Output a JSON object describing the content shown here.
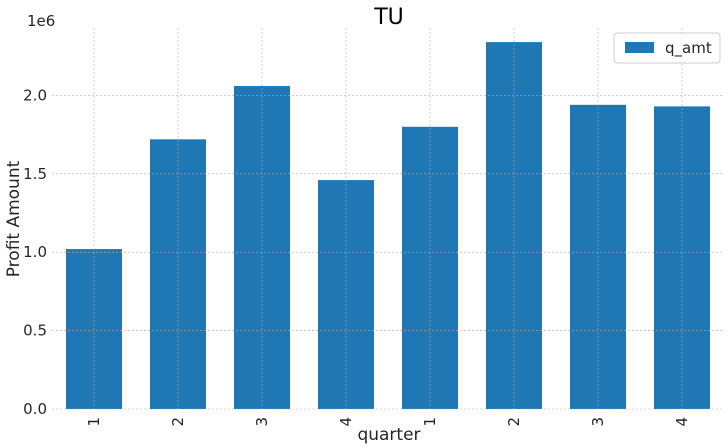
{
  "chart_data": {
    "type": "bar",
    "title": "TU",
    "xlabel": "quarter",
    "ylabel": "Profit Amount",
    "offset_label": "1e6",
    "categories": [
      "1",
      "2",
      "3",
      "4",
      "1",
      "2",
      "3",
      "4"
    ],
    "series": [
      {
        "name": "q_amt",
        "color": "#1f77b4",
        "values": [
          1020000,
          1720000,
          2060000,
          1460000,
          1800000,
          2340000,
          1940000,
          1930000
        ]
      }
    ],
    "ylim": [
      0,
      2430000
    ],
    "yticks": [
      0,
      500000,
      1000000,
      1500000,
      2000000
    ],
    "ytick_labels": [
      "0.0",
      "0.5",
      "1.0",
      "1.5",
      "2.0"
    ],
    "grid": true,
    "legend_position": "top-right"
  }
}
